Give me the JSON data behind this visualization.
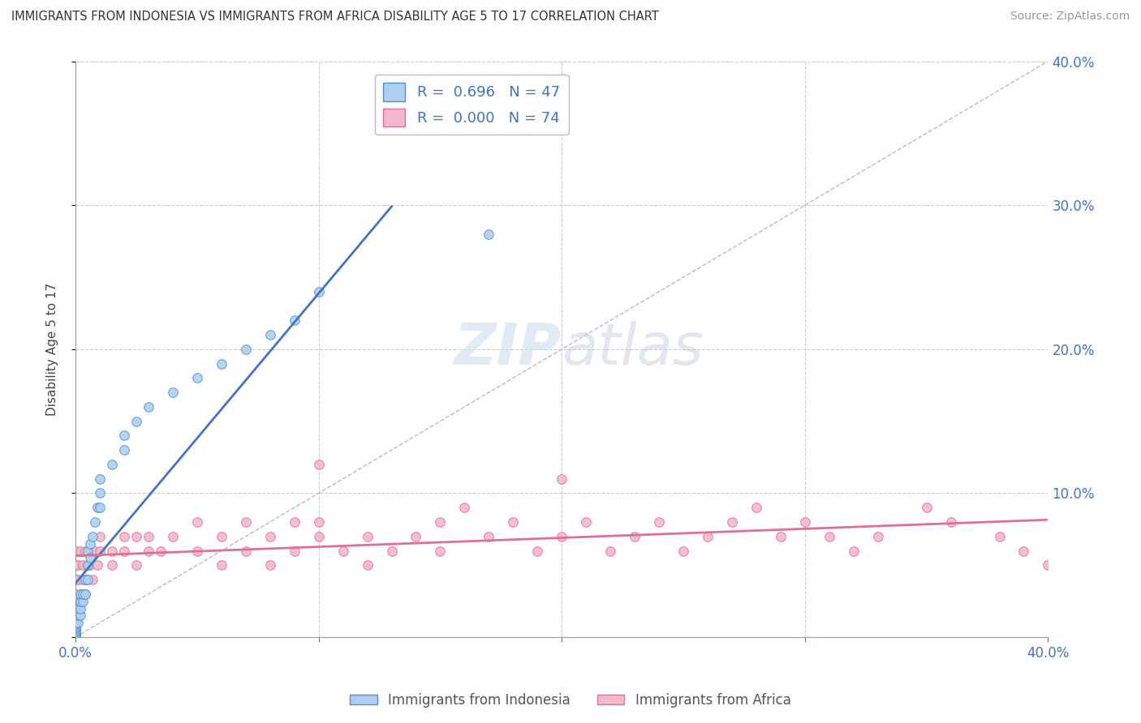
{
  "title": "IMMIGRANTS FROM INDONESIA VS IMMIGRANTS FROM AFRICA DISABILITY AGE 5 TO 17 CORRELATION CHART",
  "source": "Source: ZipAtlas.com",
  "ylabel": "Disability Age 5 to 17",
  "legend_label1": "Immigrants from Indonesia",
  "legend_label2": "Immigrants from Africa",
  "R1": 0.696,
  "N1": 47,
  "R2": 0.0,
  "N2": 74,
  "color_blue_fill": "#AECFF0",
  "color_pink_fill": "#F5B8CB",
  "color_blue_edge": "#5090CC",
  "color_pink_edge": "#E07090",
  "color_blue_line": "#4472C4",
  "color_pink_line": "#E07090",
  "color_diag": "#BBBBBB",
  "color_grid": "#CCCCCC",
  "color_tick_label": "#4472C4",
  "xlim": [
    0.0,
    0.4
  ],
  "ylim": [
    0.0,
    0.4
  ],
  "blue_x": [
    0.0,
    0.0,
    0.0,
    0.0,
    0.0,
    0.0,
    0.0,
    0.0,
    0.0,
    0.0,
    0.0,
    0.0,
    0.001,
    0.001,
    0.001,
    0.002,
    0.002,
    0.002,
    0.002,
    0.003,
    0.003,
    0.004,
    0.004,
    0.005,
    0.005,
    0.005,
    0.006,
    0.006,
    0.007,
    0.008,
    0.009,
    0.01,
    0.01,
    0.01,
    0.015,
    0.02,
    0.02,
    0.025,
    0.03,
    0.04,
    0.05,
    0.06,
    0.07,
    0.08,
    0.09,
    0.1,
    0.17
  ],
  "blue_y": [
    0.0,
    0.001,
    0.002,
    0.003,
    0.004,
    0.005,
    0.006,
    0.007,
    0.008,
    0.009,
    0.01,
    0.012,
    0.01,
    0.015,
    0.02,
    0.015,
    0.02,
    0.025,
    0.03,
    0.025,
    0.03,
    0.03,
    0.04,
    0.04,
    0.05,
    0.06,
    0.055,
    0.065,
    0.07,
    0.08,
    0.09,
    0.09,
    0.1,
    0.11,
    0.12,
    0.13,
    0.14,
    0.15,
    0.16,
    0.17,
    0.18,
    0.19,
    0.2,
    0.21,
    0.22,
    0.24,
    0.28
  ],
  "pink_x": [
    0.0,
    0.0,
    0.0,
    0.0,
    0.001,
    0.001,
    0.002,
    0.002,
    0.003,
    0.003,
    0.004,
    0.004,
    0.005,
    0.005,
    0.006,
    0.007,
    0.008,
    0.009,
    0.01,
    0.01,
    0.015,
    0.015,
    0.02,
    0.02,
    0.025,
    0.025,
    0.03,
    0.03,
    0.035,
    0.04,
    0.05,
    0.05,
    0.06,
    0.06,
    0.07,
    0.07,
    0.08,
    0.08,
    0.09,
    0.09,
    0.1,
    0.1,
    0.11,
    0.12,
    0.12,
    0.13,
    0.14,
    0.15,
    0.15,
    0.16,
    0.17,
    0.18,
    0.19,
    0.2,
    0.21,
    0.22,
    0.23,
    0.24,
    0.25,
    0.26,
    0.27,
    0.28,
    0.29,
    0.3,
    0.31,
    0.32,
    0.33,
    0.35,
    0.36,
    0.38,
    0.39,
    0.4,
    0.1,
    0.2
  ],
  "pink_y": [
    0.04,
    0.05,
    0.06,
    0.03,
    0.05,
    0.04,
    0.06,
    0.03,
    0.05,
    0.04,
    0.06,
    0.03,
    0.05,
    0.04,
    0.05,
    0.04,
    0.06,
    0.05,
    0.06,
    0.07,
    0.06,
    0.05,
    0.07,
    0.06,
    0.07,
    0.05,
    0.06,
    0.07,
    0.06,
    0.07,
    0.08,
    0.06,
    0.07,
    0.05,
    0.08,
    0.06,
    0.07,
    0.05,
    0.08,
    0.06,
    0.08,
    0.07,
    0.06,
    0.07,
    0.05,
    0.06,
    0.07,
    0.08,
    0.06,
    0.09,
    0.07,
    0.08,
    0.06,
    0.07,
    0.08,
    0.06,
    0.07,
    0.08,
    0.06,
    0.07,
    0.08,
    0.09,
    0.07,
    0.08,
    0.07,
    0.06,
    0.07,
    0.09,
    0.08,
    0.07,
    0.06,
    0.05,
    0.12,
    0.11
  ]
}
